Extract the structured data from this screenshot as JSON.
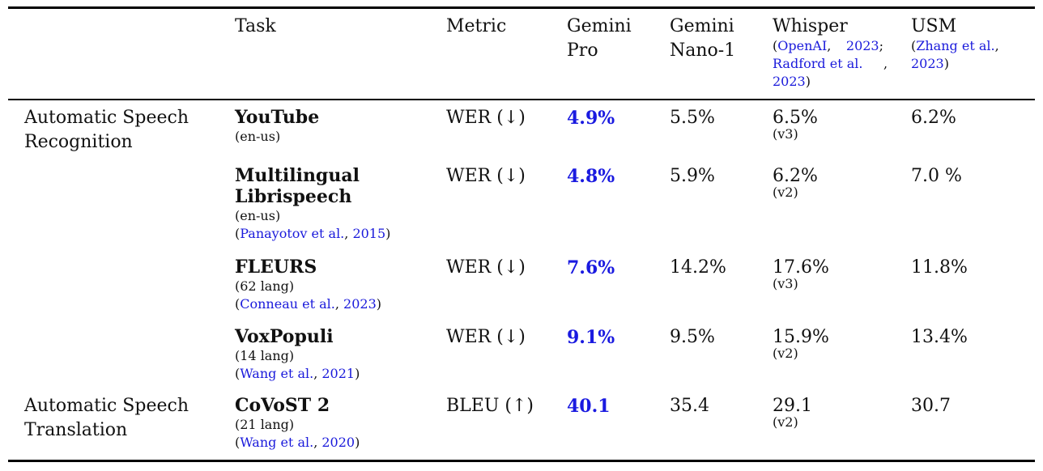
{
  "header": {
    "task": "Task",
    "metric": "Metric",
    "gemini_pro": [
      "Gemini",
      "Pro"
    ],
    "gemini_nano": [
      "Gemini",
      "Nano-1"
    ],
    "whisper": "Whisper",
    "whisper_cite": {
      "open": "(",
      "openai": "OpenAI",
      "comma1": ",",
      "y1": "2023",
      "semi": ";",
      "radford": "Radford et al.",
      "comma2": ",",
      "y2": "2023",
      "close": ")"
    },
    "usm": "USM",
    "usm_cite": {
      "open": "(",
      "zhang": "Zhang et al.",
      "comma": ",",
      "year": "2023",
      "close": ")"
    }
  },
  "categories": {
    "asr": [
      "Automatic Speech",
      "Recognition"
    ],
    "ast": [
      "Automatic Speech",
      "Translation"
    ]
  },
  "rows": [
    {
      "task": [
        "YouTube"
      ],
      "detail": "(en-us)",
      "metric": "WER (↓)",
      "gemini_pro": "4.9%",
      "gemini_nano": "5.5%",
      "whisper": "6.5%",
      "whisper_ver": "(v3)",
      "usm": "6.2%"
    },
    {
      "task": [
        "Multilingual",
        "Librispeech"
      ],
      "detail": "(en-us)",
      "cite_author": "Panayotov et al.",
      "cite_year": "2015",
      "metric": "WER (↓)",
      "gemini_pro": "4.8%",
      "gemini_nano": "5.9%",
      "whisper": "6.2%",
      "whisper_ver": "(v2)",
      "usm": "7.0 %"
    },
    {
      "task": [
        "FLEURS"
      ],
      "detail": "(62 lang)",
      "cite_author": "Conneau et al.",
      "cite_year": "2023",
      "metric": "WER (↓)",
      "gemini_pro": "7.6%",
      "gemini_nano": "14.2%",
      "whisper": "17.6%",
      "whisper_ver": "(v3)",
      "usm": "11.8%"
    },
    {
      "task": [
        "VoxPopuli"
      ],
      "detail": "(14 lang)",
      "cite_author": "Wang et al.",
      "cite_year": "2021",
      "metric": "WER (↓)",
      "gemini_pro": "9.1%",
      "gemini_nano": "9.5%",
      "whisper": "15.9%",
      "whisper_ver": "(v2)",
      "usm": "13.4%"
    },
    {
      "task": [
        "CoVoST 2"
      ],
      "detail": "(21 lang)",
      "cite_author": "Wang et al.",
      "cite_year": "2020",
      "metric": "BLEU (↑)",
      "gemini_pro": "40.1",
      "gemini_nano": "35.4",
      "whisper": "29.1",
      "whisper_ver": "(v2)",
      "usm": "30.7"
    }
  ],
  "colors": {
    "link": "#1a1adb",
    "best": "#1a1ae0",
    "rule": "#000000"
  }
}
